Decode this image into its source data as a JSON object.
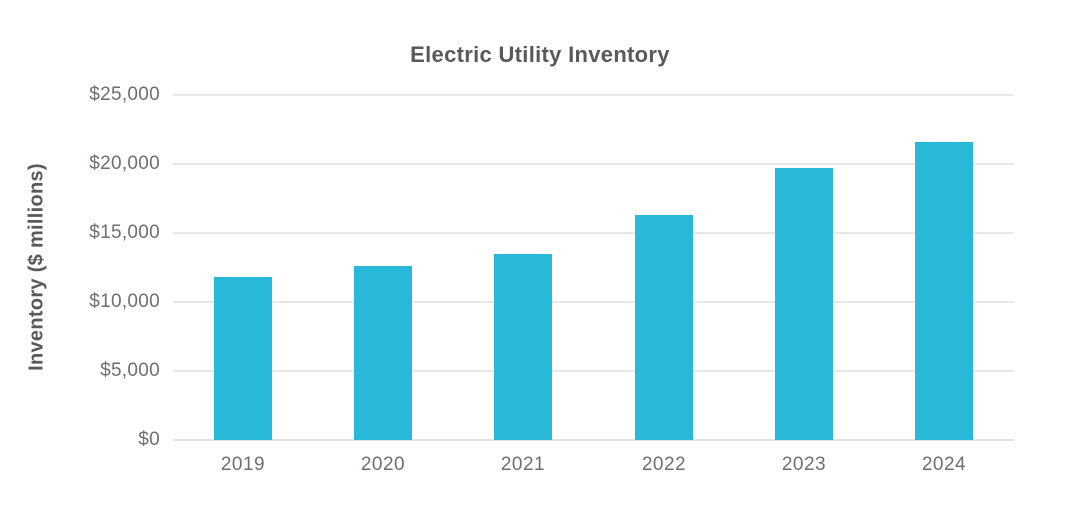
{
  "colors": {
    "background": "#FFFFFF",
    "bar": "#29B9D8",
    "title_text": "#58595B",
    "axis_text": "#6E6F72",
    "gridline": "#E8E8E8",
    "baseline": "#E2E2E2"
  },
  "chart_data": {
    "type": "bar",
    "title": "Electric Utility Inventory",
    "xlabel": "",
    "ylabel": "Inventory ($ millions)",
    "categories": [
      "2019",
      "2020",
      "2021",
      "2022",
      "2023",
      "2024"
    ],
    "values": [
      11800,
      12600,
      13500,
      16300,
      19700,
      21600
    ],
    "ylim": [
      0,
      25000
    ],
    "ytick_values": [
      0,
      5000,
      10000,
      15000,
      20000,
      25000
    ],
    "ytick_labels": [
      "$0",
      "$5,000",
      "$10,000",
      "$15,000",
      "$20,000",
      "$25,000"
    ],
    "grid": "horizontal",
    "legend": "none"
  }
}
